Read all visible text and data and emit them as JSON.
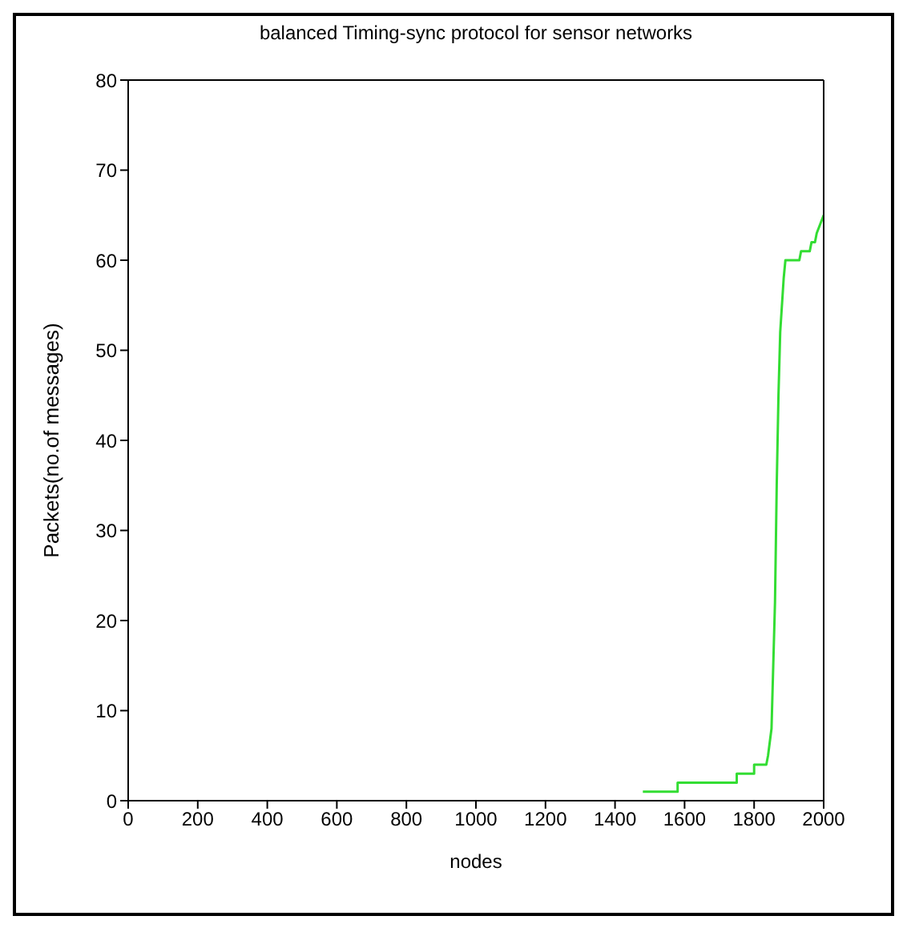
{
  "chart_data": {
    "type": "line",
    "title": "balanced Timing-sync protocol for sensor networks",
    "xlabel": "nodes",
    "ylabel": "Packets(no.of messages)",
    "x": [
      1480,
      1580,
      1580,
      1750,
      1750,
      1800,
      1800,
      1835,
      1840,
      1850,
      1855,
      1860,
      1865,
      1870,
      1875,
      1885,
      1890,
      1930,
      1935,
      1960,
      1965,
      1975,
      1980,
      1990,
      2000
    ],
    "series": [
      {
        "color": "#33dd33",
        "values": [
          1,
          1,
          2,
          2,
          3,
          3,
          4,
          4,
          5,
          8,
          15,
          22,
          35,
          45,
          52,
          58,
          60,
          60,
          61,
          61,
          62,
          62,
          63,
          64,
          65
        ]
      }
    ],
    "xlim": [
      0,
      2000
    ],
    "xticks": [
      0,
      200,
      400,
      600,
      800,
      1000,
      1200,
      1400,
      1600,
      1800,
      2000
    ],
    "ylim": [
      0,
      80
    ],
    "yticks": [
      0,
      10,
      20,
      30,
      40,
      50,
      60,
      70,
      80
    ]
  }
}
